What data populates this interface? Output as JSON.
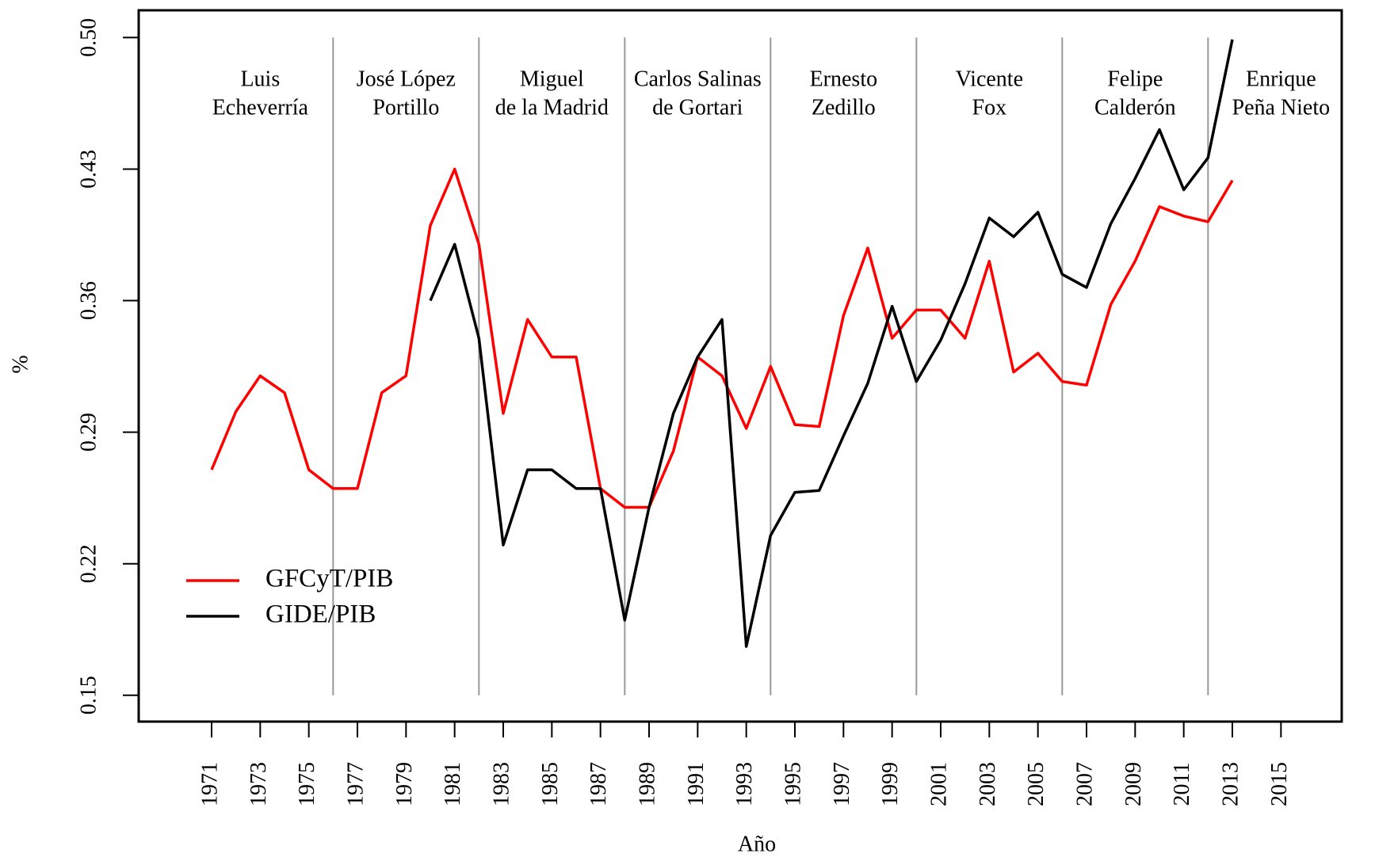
{
  "chart_data": {
    "type": "line",
    "x_label": "Año",
    "y_label": "%",
    "x": [
      1971,
      1972,
      1973,
      1974,
      1975,
      1976,
      1977,
      1978,
      1979,
      1980,
      1981,
      1982,
      1983,
      1984,
      1985,
      1986,
      1987,
      1988,
      1989,
      1990,
      1991,
      1992,
      1993,
      1994,
      1995,
      1996,
      1997,
      1998,
      1999,
      2000,
      2001,
      2002,
      2003,
      2004,
      2005,
      2006,
      2007,
      2008,
      2009,
      2010,
      2011,
      2012,
      2013
    ],
    "series": [
      {
        "name": "GFCyT/PIB",
        "color": "#ff0000",
        "values": [
          0.27,
          0.301,
          0.32,
          0.311,
          0.27,
          0.26,
          0.26,
          0.311,
          0.32,
          0.4,
          0.43,
          0.39,
          0.3,
          0.35,
          0.33,
          0.33,
          0.26,
          0.25,
          0.25,
          0.28,
          0.33,
          0.32,
          0.292,
          0.325,
          0.294,
          0.293,
          0.352,
          0.388,
          0.34,
          0.355,
          0.355,
          0.34,
          0.381,
          0.322,
          0.332,
          0.317,
          0.315,
          0.358,
          0.381,
          0.41,
          0.405,
          0.402,
          0.424
        ]
      },
      {
        "name": "GIDE/PIB",
        "color": "#000000",
        "values": [
          null,
          null,
          null,
          null,
          null,
          null,
          null,
          null,
          null,
          0.36,
          0.39,
          0.34,
          0.23,
          0.27,
          0.27,
          0.26,
          0.26,
          0.19,
          0.25,
          0.3,
          0.33,
          0.35,
          0.176,
          0.235,
          0.258,
          0.259,
          0.288,
          0.316,
          0.357,
          0.317,
          0.339,
          0.369,
          0.404,
          0.394,
          0.407,
          0.374,
          0.367,
          0.401,
          0.425,
          0.451,
          0.419,
          0.436,
          0.499
        ]
      }
    ],
    "xlim": [
      1968,
      2017.5
    ],
    "xticks": [
      1971,
      1973,
      1975,
      1977,
      1979,
      1981,
      1983,
      1985,
      1987,
      1989,
      1991,
      1993,
      1995,
      1997,
      1999,
      2001,
      2003,
      2005,
      2007,
      2009,
      2011,
      2013,
      2015
    ],
    "ylim": [
      0.136,
      0.5145
    ],
    "yticks": [
      0.15,
      0.22,
      0.29,
      0.36,
      0.43,
      {
        "value": 0.5,
        "label": "0.50"
      }
    ],
    "dividers": [
      1976,
      1982,
      1988,
      1994,
      2000,
      2006,
      2012
    ],
    "periods": [
      [
        "Luis",
        "Echeverría"
      ],
      [
        "José López",
        "Portillo"
      ],
      [
        "Miguel",
        "de la Madrid"
      ],
      [
        "Carlos Salinas",
        "de Gortari"
      ],
      [
        "Ernesto",
        "Zedillo"
      ],
      [
        "Vicente",
        "Fox"
      ],
      [
        "Felipe",
        "Calderón"
      ],
      [
        "Enrique",
        "Peña Nieto"
      ]
    ],
    "legend_position": "bottom-left"
  }
}
